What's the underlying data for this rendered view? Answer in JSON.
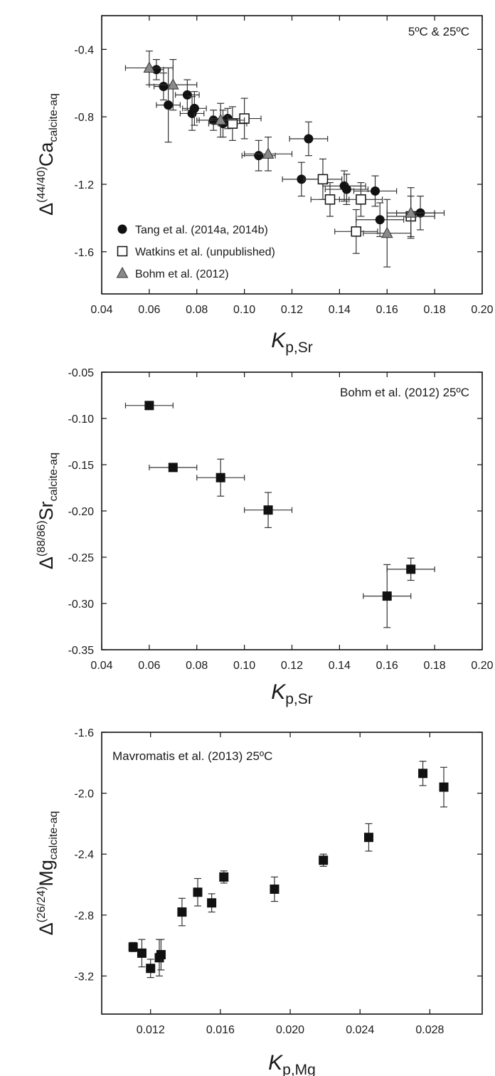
{
  "chart_data": [
    {
      "type": "scatter",
      "annotation": "5ºC & 25ºC",
      "xlabel_main": "K",
      "xlabel_sub": "p,Sr",
      "ylabel_main": "Δ",
      "ylabel_sup": "(44/40)",
      "ylabel_elem": "Ca",
      "ylabel_sub": "calcite-aq",
      "xlim": [
        0.04,
        0.2
      ],
      "ylim": [
        -1.85,
        -0.2
      ],
      "xticks": [
        "0.04",
        "0.06",
        "0.08",
        "0.10",
        "0.12",
        "0.14",
        "0.16",
        "0.18",
        "0.20"
      ],
      "yticks": [
        "-0.4",
        "-0.8",
        "-1.2",
        "-1.6"
      ],
      "series": [
        {
          "name": "Tang et al. (2014a, 2014b)",
          "marker": "circle-filled",
          "x": [
            0.063,
            0.066,
            0.068,
            0.076,
            0.078,
            0.079,
            0.087,
            0.091,
            0.093,
            0.106,
            0.124,
            0.127,
            0.142,
            0.143,
            0.155,
            0.157,
            0.174
          ],
          "y": [
            -0.52,
            -0.62,
            -0.73,
            -0.67,
            -0.78,
            -0.75,
            -0.82,
            -0.84,
            -0.81,
            -1.03,
            -1.17,
            -0.93,
            -1.21,
            -1.23,
            -1.24,
            -1.41,
            -1.37
          ],
          "xerr": [
            0.003,
            0.004,
            0.005,
            0.005,
            0.005,
            0.005,
            0.006,
            0.006,
            0.007,
            0.007,
            0.008,
            0.008,
            0.009,
            0.009,
            0.009,
            0.01,
            0.01
          ],
          "yerr": [
            0.06,
            0.08,
            0.22,
            0.09,
            0.1,
            0.1,
            0.06,
            0.08,
            0.06,
            0.09,
            0.1,
            0.1,
            0.09,
            0.09,
            0.09,
            0.1,
            0.1
          ]
        },
        {
          "name": "Watkins et al. (unpublished)",
          "marker": "square-open",
          "x": [
            0.095,
            0.1,
            0.133,
            0.136,
            0.147,
            0.149,
            0.17
          ],
          "y": [
            -0.84,
            -0.81,
            -1.17,
            -1.29,
            -1.48,
            -1.29,
            -1.39
          ],
          "xerr": [
            0.006,
            0.007,
            0.008,
            0.008,
            0.009,
            0.009,
            0.01
          ],
          "yerr": [
            0.1,
            0.12,
            0.12,
            0.1,
            0.13,
            0.1,
            0.12
          ]
        },
        {
          "name": "Bohm et al. (2012)",
          "marker": "triangle-gray",
          "x": [
            0.06,
            0.07,
            0.09,
            0.11,
            0.16,
            0.17
          ],
          "y": [
            -0.51,
            -0.61,
            -0.82,
            -1.02,
            -1.49,
            -1.37
          ],
          "xerr": [
            0.01,
            0.01,
            0.01,
            0.01,
            0.01,
            0.01
          ],
          "yerr": [
            0.1,
            0.15,
            0.1,
            0.1,
            0.2,
            0.15
          ]
        }
      ]
    },
    {
      "type": "scatter",
      "annotation": "Bohm et al. (2012)   25ºC",
      "xlabel_main": "K",
      "xlabel_sub": "p,Sr",
      "ylabel_main": "Δ",
      "ylabel_sup": "(88/86)",
      "ylabel_elem": "Sr",
      "ylabel_sub": "calcite-aq",
      "xlim": [
        0.04,
        0.2
      ],
      "ylim": [
        -0.35,
        -0.05
      ],
      "xticks": [
        "0.04",
        "0.06",
        "0.08",
        "0.10",
        "0.12",
        "0.14",
        "0.16",
        "0.18",
        "0.20"
      ],
      "yticks": [
        "-0.05",
        "-0.10",
        "-0.15",
        "-0.20",
        "-0.25",
        "-0.30",
        "-0.35"
      ],
      "series": [
        {
          "marker": "square-filled",
          "x": [
            0.06,
            0.07,
            0.09,
            0.11,
            0.16,
            0.17
          ],
          "y": [
            -0.086,
            -0.153,
            -0.164,
            -0.199,
            -0.292,
            -0.263
          ],
          "xerr": [
            0.01,
            0.01,
            0.01,
            0.01,
            0.01,
            0.01
          ],
          "yerr": [
            0.0,
            0.0,
            0.02,
            0.019,
            0.034,
            0.012
          ]
        }
      ]
    },
    {
      "type": "scatter",
      "annotation": "Mavromatis et al. (2013)   25ºC",
      "xlabel_main": "K",
      "xlabel_sub": "p,Mg",
      "ylabel_main": "Δ",
      "ylabel_sup": "(26/24)",
      "ylabel_elem": "Mg",
      "ylabel_sub": "calcite-aq",
      "xlim": [
        0.0092,
        0.031
      ],
      "ylim": [
        -3.45,
        -1.6
      ],
      "xticks": [
        "0.012",
        "0.016",
        "0.020",
        "0.024",
        "0.028"
      ],
      "yticks": [
        "-1.6",
        "-2.0",
        "-2.4",
        "-2.8",
        "-3.2"
      ],
      "series": [
        {
          "marker": "square-filled",
          "x": [
            0.011,
            0.0115,
            0.012,
            0.0125,
            0.0126,
            0.0138,
            0.0147,
            0.0155,
            0.0162,
            0.0191,
            0.0219,
            0.0245,
            0.0276,
            0.0288
          ],
          "y": [
            -3.01,
            -3.05,
            -3.15,
            -3.08,
            -3.06,
            -2.78,
            -2.65,
            -2.72,
            -2.55,
            -2.63,
            -2.44,
            -2.29,
            -1.87,
            -1.96
          ],
          "xerr": [
            0,
            0,
            0,
            0,
            0,
            0,
            0,
            0,
            0,
            0,
            0,
            0,
            0,
            0
          ],
          "yerr": [
            0.03,
            0.09,
            0.06,
            0.12,
            0.1,
            0.09,
            0.09,
            0.06,
            0.04,
            0.08,
            0.04,
            0.09,
            0.08,
            0.13
          ]
        }
      ]
    }
  ]
}
